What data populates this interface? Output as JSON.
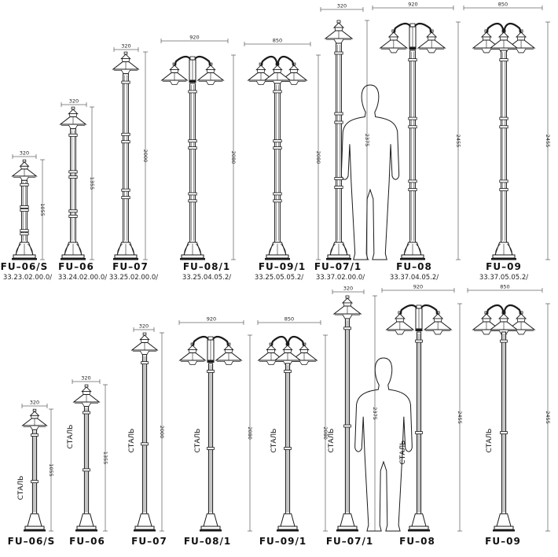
{
  "steel_label": "СТАЛЬ",
  "rows": [
    {
      "id": "top",
      "items": [
        {
          "name": "FU–06/S",
          "code": "33.23.02.00.0/",
          "width": "320",
          "height": "1055"
        },
        {
          "name": "FU–06",
          "code": "33.24.02.00.0/",
          "width": "320",
          "height": "1355"
        },
        {
          "name": "FU–07",
          "code": "33.25.02.00.0/",
          "width": "320",
          "height": "2000"
        },
        {
          "name": "FU–08/1",
          "code": "33.25.04.05.2/",
          "width": "920",
          "height": "2080"
        },
        {
          "name": "FU–09/1",
          "code": "33.25.05.05.2/",
          "width": "850",
          "height": "2080"
        },
        {
          "name": "FU–07/1",
          "code": "33.37.02.00.0/",
          "width": "320",
          "height": "2375"
        },
        {
          "name": "FU–08",
          "code": "33.37.04.05.2/",
          "width": "920",
          "height": "2455"
        },
        {
          "name": "FU–09",
          "code": "33.37.05.05.2/",
          "width": "850",
          "height": "2455"
        }
      ]
    },
    {
      "id": "bottom",
      "items": [
        {
          "name": "FU–06/S",
          "width": "320",
          "height": "1055"
        },
        {
          "name": "FU–06",
          "width": "320",
          "height": "1355"
        },
        {
          "name": "FU–07",
          "width": "320",
          "height": "2000"
        },
        {
          "name": "FU–08/1",
          "width": "920",
          "height": "2080"
        },
        {
          "name": "FU–09/1",
          "width": "850",
          "height": "2080"
        },
        {
          "name": "FU–07/1",
          "width": "320",
          "height": "2375"
        },
        {
          "name": "FU–08",
          "width": "920",
          "height": "2455"
        },
        {
          "name": "FU–09",
          "width": "850",
          "height": "2455"
        }
      ]
    }
  ]
}
